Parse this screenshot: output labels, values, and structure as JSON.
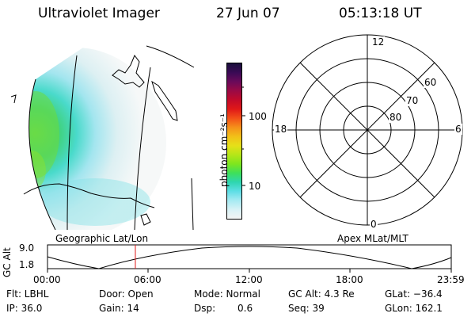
{
  "header": {
    "instrument": "Ultraviolet Imager",
    "date": "27 Jun 07",
    "time": "05:13:18 UT"
  },
  "colorbar": {
    "label": "photon cm⁻²s⁻¹",
    "tick_100": "100",
    "tick_10": "10",
    "colors": [
      "#1a0f3c",
      "#3a0a55",
      "#6a0a5a",
      "#9a0a45",
      "#c20a2a",
      "#e01818",
      "#f25018",
      "#f5901a",
      "#f2c018",
      "#e6e018",
      "#b6e618",
      "#7ee61e",
      "#3ee05a",
      "#2ed6b0",
      "#5edee6",
      "#a6eaf2",
      "#d8f2f6",
      "#f4f4f4"
    ]
  },
  "polar": {
    "labels": {
      "noon": "12",
      "midnight": "0",
      "dusk": "18",
      "dawn": "6"
    },
    "lat_labels": [
      "60",
      "70",
      "80"
    ]
  },
  "altitude_strip": {
    "title_left": "Geographic Lat/Lon",
    "title_right": "Apex MLat/MLT",
    "axis_label": "GC Alt",
    "y_ticks": [
      "9.0",
      "1.8"
    ],
    "x_ticks": [
      "00:00",
      "06:00",
      "12:00",
      "18:00",
      "23:59"
    ],
    "current_fraction": 0.2176,
    "marker_color": "#e01818"
  },
  "info": {
    "flt": "Flt: LBHL",
    "door": "Door: Open",
    "mode": "Mode: Normal",
    "gc_alt": "GC Alt: 4.3 Re",
    "glat": "GLat: −36.4",
    "ip": "IP: 36.0",
    "gain": "Gain: 14",
    "dsp_label": "Dsp:",
    "dsp_value": "0.6",
    "seq": "Seq: 39",
    "glon": "GLon: 162.1"
  }
}
